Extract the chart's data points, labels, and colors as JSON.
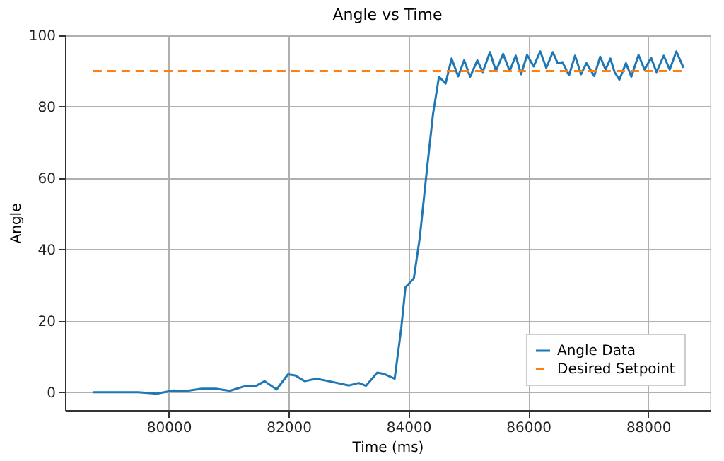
{
  "chart_data": {
    "type": "line",
    "title": "Angle vs Time",
    "xlabel": "Time (ms)",
    "ylabel": "Angle",
    "xlim": [
      78270,
      89030
    ],
    "xticks": [
      80000,
      82000,
      84000,
      86000,
      88000
    ],
    "ylim": [
      -5,
      100
    ],
    "yticks": [
      0,
      20,
      40,
      60,
      80,
      100
    ],
    "grid": true,
    "legend": "bottom right",
    "line_style": "solid",
    "marker": "none",
    "series": [
      {
        "name": "Angle Data",
        "color": "#1f77b4",
        "x": [
          78740,
          79490,
          79800,
          80080,
          80270,
          80550,
          80790,
          81020,
          81290,
          81450,
          81600,
          81800,
          81990,
          82110,
          82270,
          82460,
          82700,
          83010,
          83170,
          83290,
          83480,
          83600,
          83770,
          83880,
          83950,
          84000,
          84090,
          84190,
          84310,
          84410,
          84510,
          84620,
          84720,
          84830,
          84930,
          85030,
          85150,
          85240,
          85360,
          85460,
          85580,
          85690,
          85790,
          85880,
          85980,
          86090,
          86200,
          86300,
          86410,
          86490,
          86570,
          86680,
          86780,
          86880,
          86970,
          87100,
          87200,
          87290,
          87370,
          87440,
          87520,
          87630,
          87720,
          87840,
          87940,
          88050,
          88140,
          88260,
          88360,
          88470,
          88590
        ],
        "values": [
          0,
          0,
          -0.4,
          0.5,
          0.3,
          1.0,
          1.0,
          0.4,
          1.8,
          1.7,
          3.1,
          0.8,
          5.0,
          4.7,
          3.1,
          3.8,
          3.0,
          1.9,
          2.6,
          1.8,
          5.5,
          5.1,
          3.8,
          17.9,
          29.4,
          30.3,
          31.9,
          43.4,
          62.6,
          77.9,
          88.4,
          86.5,
          93.5,
          88.5,
          93.0,
          88.4,
          93.0,
          89.7,
          95.3,
          90.0,
          94.8,
          90.0,
          94.3,
          89.1,
          94.5,
          91.3,
          95.5,
          90.9,
          95.3,
          92.2,
          92.5,
          88.8,
          94.3,
          89.1,
          92.2,
          88.6,
          94.0,
          90.4,
          93.5,
          89.7,
          87.6,
          92.2,
          88.4,
          94.5,
          90.4,
          93.7,
          89.7,
          94.3,
          90.4,
          95.5,
          90.9
        ]
      },
      {
        "name": "Desired Setpoint",
        "color": "#ff7f0e",
        "line_style": "dashed",
        "x": [
          78740,
          88590
        ],
        "values": [
          90,
          90
        ]
      }
    ]
  }
}
